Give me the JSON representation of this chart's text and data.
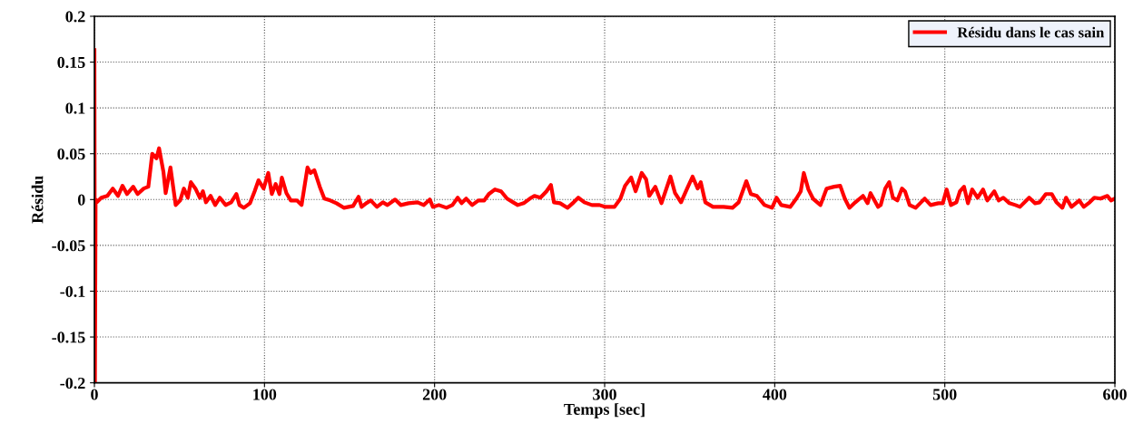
{
  "chart_data": {
    "type": "line",
    "xlabel": "Temps [sec]",
    "ylabel": "Résidu",
    "xlim": [
      0,
      600
    ],
    "ylim": [
      -0.2,
      0.2
    ],
    "xticks": [
      0,
      100,
      200,
      300,
      400,
      500,
      600
    ],
    "yticks": [
      -0.2,
      -0.15,
      -0.1,
      -0.05,
      0,
      0.05,
      0.1,
      0.15,
      0.2
    ],
    "grid": true,
    "legend": "top right",
    "series": [
      {
        "name": "Résidu dans le cas sain",
        "color": "#ff0000",
        "x": [
          0,
          0.3,
          0.7,
          1.4,
          4.1,
          7.6,
          10.8,
          13.9,
          16.5,
          19.2,
          22.8,
          25.4,
          29,
          31.7,
          34,
          36.5,
          38,
          40.6,
          41.9,
          44.7,
          47.8,
          50.4,
          52.6,
          54.9,
          56.7,
          59.4,
          62,
          63.8,
          65.6,
          68.3,
          71,
          73.7,
          77.2,
          80.4,
          83.5,
          85.3,
          87.9,
          91.5,
          94.2,
          96.5,
          99.5,
          102.2,
          104.3,
          106.6,
          108.8,
          110.2,
          112.9,
          115.5,
          119.1,
          121.8,
          125.3,
          127.1,
          129.3,
          132.5,
          135.2,
          138.7,
          142.3,
          146.8,
          152.1,
          155.3,
          157.1,
          159.8,
          162.5,
          166.1,
          169.6,
          172.3,
          176.8,
          180.2,
          184.7,
          190,
          193.6,
          197.2,
          199,
          202.5,
          207,
          210.5,
          213.6,
          215.9,
          218.6,
          222.1,
          225.7,
          229.2,
          231.9,
          235.5,
          239.1,
          242.6,
          246.2,
          248.9,
          252.4,
          256,
          258.7,
          262.2,
          265.8,
          268.4,
          270.2,
          273.8,
          278.2,
          281.8,
          284.5,
          288.1,
          292.5,
          297,
          300.5,
          305.8,
          309.3,
          312,
          315.6,
          318.2,
          321.8,
          324.4,
          326.2,
          329.8,
          333.4,
          338.7,
          341.4,
          344.9,
          348.5,
          351.7,
          354.7,
          356.5,
          359.2,
          363.7,
          369.9,
          375.2,
          378.8,
          383.3,
          386,
          389.5,
          394,
          398.4,
          401.1,
          403.8,
          409.1,
          412.7,
          415.3,
          417.1,
          419.8,
          422.5,
          426.9,
          430.5,
          434.9,
          438.5,
          441.2,
          443.9,
          447.4,
          451.9,
          454.6,
          456.3,
          460.8,
          462.3,
          465,
          467.3,
          469.5,
          472.1,
          474.8,
          476.6,
          479.3,
          482.8,
          485.5,
          488.2,
          491.7,
          496.2,
          498.8,
          501.1,
          503.6,
          506.8,
          508.9,
          511.3,
          513.6,
          516.1,
          519.3,
          522.5,
          525,
          529.1,
          531.7,
          534.4,
          538,
          541.5,
          544.2,
          549.6,
          553.1,
          555.8,
          559.4,
          562.9,
          565.6,
          569.1,
          571.3,
          574.5,
          579,
          581.7,
          585.2,
          587.9,
          591.5,
          595.6,
          597.7,
          599.9
        ],
        "values": [
          0.163,
          -0.2,
          0,
          -0.003,
          0.002,
          0.004,
          0.012,
          0.004,
          0.015,
          0.006,
          0.014,
          0.006,
          0.012,
          0.014,
          0.05,
          0.045,
          0.056,
          0.03,
          0.007,
          0.035,
          -0.006,
          -0.001,
          0.012,
          0.002,
          0.019,
          0.012,
          0.002,
          0.009,
          -0.003,
          0.004,
          -0.006,
          0.002,
          -0.006,
          -0.003,
          0.006,
          -0.006,
          -0.009,
          -0.004,
          0.009,
          0.021,
          0.012,
          0.029,
          0.006,
          0.017,
          0.006,
          0.024,
          0.007,
          -0.001,
          -0.001,
          -0.006,
          0.035,
          0.029,
          0.032,
          0.014,
          0.001,
          -0.001,
          -0.004,
          -0.009,
          -0.007,
          0.003,
          -0.008,
          -0.004,
          -0.001,
          -0.008,
          -0.003,
          -0.006,
          0,
          -0.006,
          -0.004,
          -0.003,
          -0.006,
          0,
          -0.008,
          -0.006,
          -0.009,
          -0.006,
          0.002,
          -0.004,
          0.001,
          -0.006,
          -0.001,
          -0.001,
          0.006,
          0.011,
          0.009,
          0.001,
          -0.003,
          -0.006,
          -0.004,
          0.001,
          0.004,
          0.002,
          0.009,
          0.016,
          -0.003,
          -0.004,
          -0.009,
          -0.003,
          0.002,
          -0.003,
          -0.006,
          -0.006,
          -0.008,
          -0.008,
          0.001,
          0.015,
          0.024,
          0.009,
          0.029,
          0.022,
          0.004,
          0.014,
          -0.004,
          0.025,
          0.007,
          -0.003,
          0.012,
          0.025,
          0.012,
          0.019,
          -0.003,
          -0.008,
          -0.008,
          -0.009,
          -0.003,
          0.02,
          0.006,
          0.004,
          -0.006,
          -0.009,
          0.002,
          -0.006,
          -0.008,
          0.001,
          0.009,
          0.029,
          0.011,
          0.001,
          -0.006,
          0.012,
          0.014,
          0.015,
          0.001,
          -0.009,
          -0.003,
          0.004,
          -0.004,
          0.007,
          -0.008,
          -0.006,
          0.012,
          0.019,
          0.002,
          -0.001,
          0.012,
          0.009,
          -0.006,
          -0.009,
          -0.004,
          0.001,
          -0.006,
          -0.004,
          -0.004,
          0.011,
          -0.006,
          -0.003,
          0.009,
          0.014,
          -0.004,
          0.011,
          0.002,
          0.011,
          -0.001,
          0.009,
          -0.001,
          0.002,
          -0.004,
          -0.006,
          -0.008,
          0.002,
          -0.004,
          -0.003,
          0.006,
          0.006,
          -0.003,
          -0.009,
          0.002,
          -0.008,
          -0.001,
          -0.008,
          -0.003,
          0.002,
          0.001,
          0.004,
          -0.001,
          0.001
        ]
      }
    ]
  }
}
